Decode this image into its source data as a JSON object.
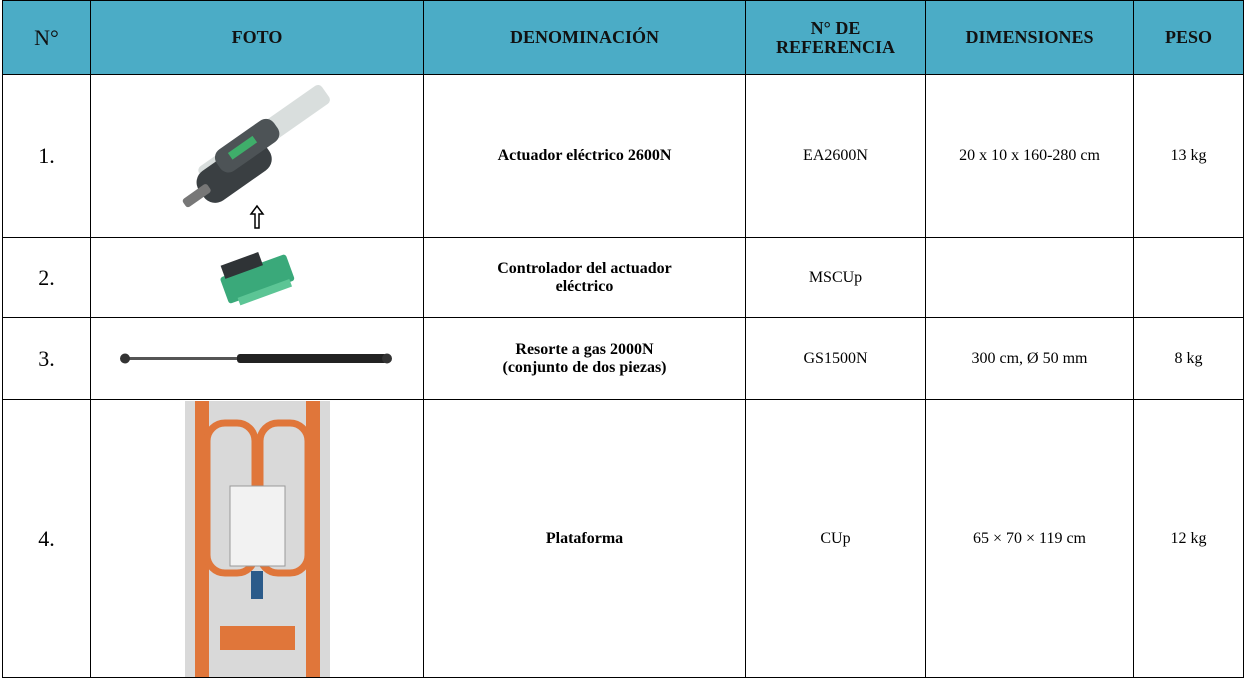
{
  "table": {
    "header": [
      "N°",
      "FOTO",
      "DENOMINACIÓN",
      "N° DE REFERENCIA",
      "DIMENSIONES",
      "PESO"
    ],
    "rows": [
      {
        "number": "1.",
        "name": "Actuador eléctrico 2600N",
        "reference": "EA2600N",
        "dimensions": "20 x 10 x 160-280 cm",
        "weight": "13 kg"
      },
      {
        "number": "2.",
        "name": "Controlador del actuador eléctrico",
        "reference": "MSCUp"
      },
      {
        "number": "3.",
        "name": "Resorte a gas 2000N (conjunto de dos piezas)",
        "reference": "GS1500N",
        "dimensions": "300 cm, Ø 50 mm",
        "weight": "8 kg"
      },
      {
        "number": "4.",
        "name": "Plataforma",
        "reference": "CUp",
        "dimensions": "65 × 70 × 119 cm",
        "weight": "12 kg"
      }
    ]
  }
}
